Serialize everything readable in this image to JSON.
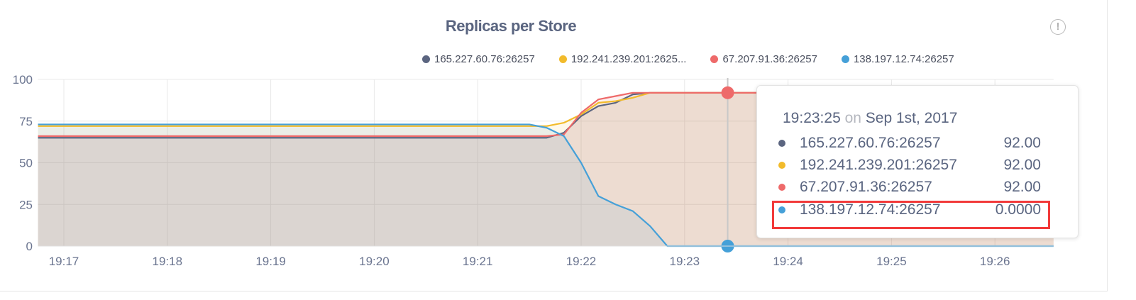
{
  "title": "Replicas per Store",
  "info_icon": "exclamation-circle-icon",
  "chart_data": {
    "type": "line",
    "title": "Replicas per Store",
    "xlabel": "",
    "ylabel": "",
    "ylim": [
      0,
      100
    ],
    "xlim": [
      "19:16:45",
      "19:26:34"
    ],
    "yticks": [
      "0",
      "25",
      "50",
      "75",
      "100"
    ],
    "xticks": [
      "19:17",
      "19:18",
      "19:19",
      "19:20",
      "19:21",
      "19:22",
      "19:23",
      "19:24",
      "19:25",
      "19:26"
    ],
    "grid": true,
    "legend_placement": "top-right",
    "area_fill": true,
    "x": [
      "19:16:45",
      "19:21:30",
      "19:21:40",
      "19:21:50",
      "19:22:00",
      "19:22:10",
      "19:22:20",
      "19:22:30",
      "19:22:40",
      "19:22:50",
      "19:26:34"
    ],
    "series": [
      {
        "name": "165.227.60.76:26257",
        "legend_label": "165.227.60.76:26257",
        "color": "#5b6580",
        "values": [
          65,
          65,
          65,
          68,
          78,
          84,
          86,
          91,
          92,
          92,
          92
        ]
      },
      {
        "name": "192.241.239.201:26257",
        "legend_label": "192.241.239.201:2625...",
        "color": "#f2bb2b",
        "values": [
          72,
          72,
          72,
          74,
          79,
          86,
          87,
          89,
          92,
          92,
          92
        ]
      },
      {
        "name": "67.207.91.36:26257",
        "legend_label": "67.207.91.36:26257",
        "color": "#ee6a6a",
        "values": [
          66,
          66,
          66,
          67,
          80,
          88,
          90,
          92,
          92,
          92,
          92
        ]
      },
      {
        "name": "138.197.12.74:26257",
        "legend_label": "138.197.12.74:26257",
        "color": "#45a0d8",
        "values": [
          73,
          73,
          71,
          66,
          50,
          30,
          25,
          21,
          12,
          0,
          0
        ]
      }
    ],
    "hover": {
      "time": "19:23:25",
      "on_label": "on",
      "date": "Sep 1st, 2017",
      "rows": [
        {
          "label": "165.227.60.76:26257",
          "value": "92.00",
          "color": "#5b6580"
        },
        {
          "label": "192.241.239.201:26257",
          "value": "92.00",
          "color": "#f2bb2b"
        },
        {
          "label": "67.207.91.36:26257",
          "value": "92.00",
          "color": "#ee6a6a"
        },
        {
          "label": "138.197.12.74:26257",
          "value": "0.0000",
          "color": "#45a0d8"
        }
      ],
      "highlighted_row": 3,
      "highlight_color": "#f23a3a"
    }
  }
}
